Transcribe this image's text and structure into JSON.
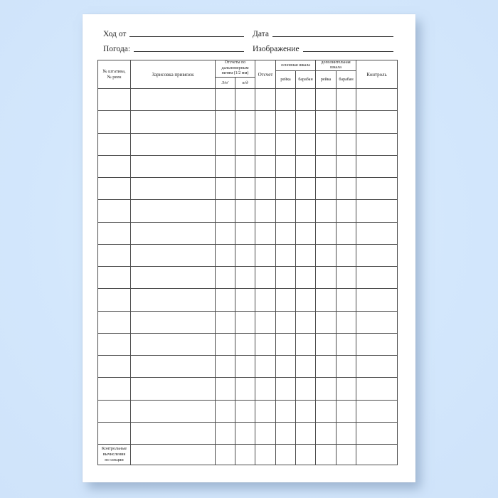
{
  "colors": {
    "background": "#d3e7fc",
    "sheet": "#ffffff",
    "grid_line": "#4b4b4b",
    "text": "#1c1c1c"
  },
  "sheet": {
    "fields": {
      "route_label": "Ход от",
      "date_label": "Дата",
      "weather_label": "Погода:",
      "image_label": "Изображение"
    },
    "table": {
      "headers": {
        "station": "№ штатива,\n№ реек",
        "sketch": "Зарисовка привязок",
        "stadia_group": "Отсчеты по\nдальномерным\nнитям (1/2 мм)",
        "stadia_back": "З/п′",
        "stadia_front": "п/д",
        "reading": "Отсчет",
        "main_scale_group": "основная шкала",
        "extra_scale_group": "дополнительная шкала",
        "rail": "рейка",
        "drum": "барабан",
        "control": "Контроль"
      },
      "body_row_count": 16,
      "column_count": 10,
      "footer_label": "Контрольные\nвычисления\nпо секции"
    }
  }
}
